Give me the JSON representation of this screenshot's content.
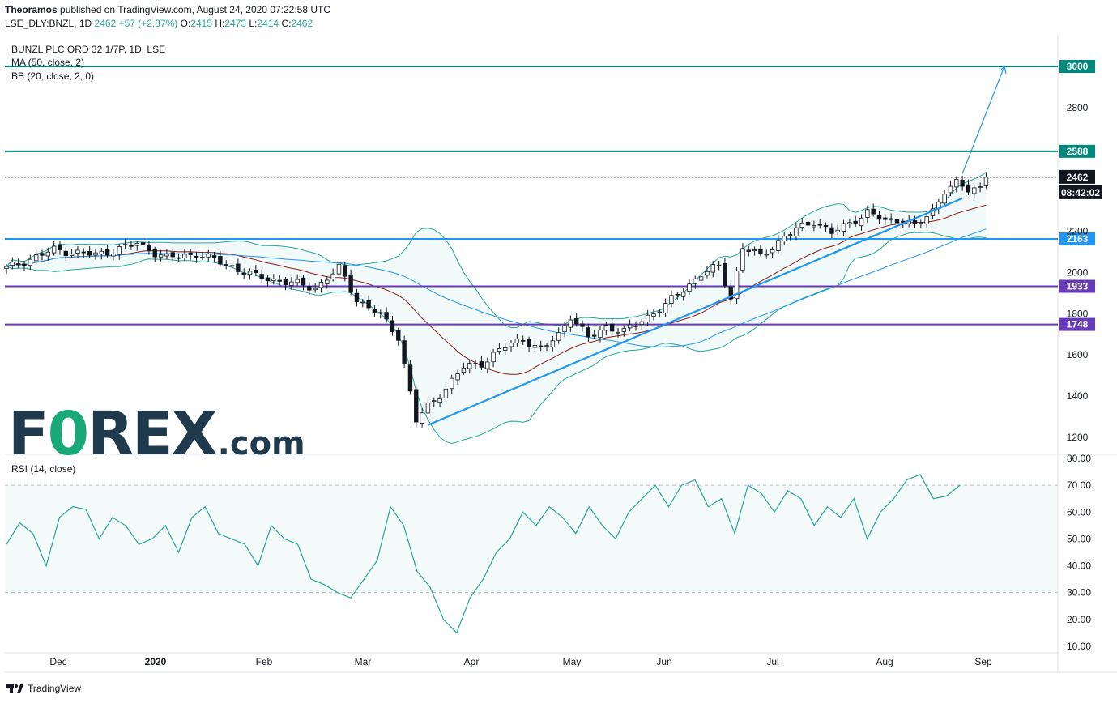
{
  "header": {
    "publisher": "Theoramos",
    "published_text": " published on TradingView.com, August 24, 2020 07:22:58 UTC",
    "symbol": "LSE_DLY:BNZL, 1D",
    "last": "2462",
    "change": "+57 (+2.37%)",
    "o_label": "O:",
    "o_value": "2415",
    "h_label": "H:",
    "h_value": "2473",
    "l_label": "L:",
    "l_value": "2414",
    "c_label": "C:",
    "c_value": "2462"
  },
  "legend": {
    "title": "BUNZL PLC ORD 32 1/7P, 1D, LSE",
    "ma": "MA (50, close, 2)",
    "bb": "BB (20, close, 2, 0)",
    "rsi": "RSI (14, close)"
  },
  "logo": {
    "part1": "F",
    "part2": "0",
    "part3": "REX",
    "part4": ".com"
  },
  "footer": {
    "brand": "TradingView"
  },
  "colors": {
    "up": "#ffffff",
    "down": "#131722",
    "teal_level": "#00897b",
    "purple_level": "#673ab7",
    "blue_level": "#2196f3",
    "bb": "#26a69a",
    "ma": "#2196f3",
    "basis": "#8b1a1a",
    "rsi": "#26a69a"
  },
  "chart_data": [
    {
      "type": "candlestick",
      "title": "BUNZL PLC ORD 32 1/7P, 1D, LSE",
      "x_ticks": [
        "Dec",
        "2020",
        "Feb",
        "Mar",
        "Apr",
        "May",
        "Jun",
        "Jul",
        "Aug",
        "Sep"
      ],
      "y_ticks": [
        "1200",
        "1400",
        "1600",
        "1800",
        "2000",
        "2200",
        "2800"
      ],
      "ylim": [
        1130,
        3080
      ],
      "current_price": 2462,
      "countdown": "08:42:02",
      "levels": [
        {
          "value": 3000,
          "label": "3000",
          "color": "teal"
        },
        {
          "value": 2588,
          "label": "2588",
          "color": "teal"
        },
        {
          "value": 2163,
          "label": "2163",
          "color": "blue"
        },
        {
          "value": 1933,
          "label": "1933",
          "color": "purple"
        },
        {
          "value": 1748,
          "label": "1748",
          "color": "purple"
        }
      ],
      "close_anchors": [
        [
          0,
          2020
        ],
        [
          8,
          2110
        ],
        [
          15,
          2085
        ],
        [
          22,
          2140
        ],
        [
          27,
          2070
        ],
        [
          32,
          2090
        ],
        [
          37,
          2040
        ],
        [
          42,
          1980
        ],
        [
          47,
          1955
        ],
        [
          52,
          1925
        ],
        [
          56,
          2020
        ],
        [
          59,
          1870
        ],
        [
          63,
          1790
        ],
        [
          66,
          1690
        ],
        [
          69,
          1280
        ],
        [
          71,
          1350
        ],
        [
          74,
          1440
        ],
        [
          77,
          1540
        ],
        [
          80,
          1560
        ],
        [
          84,
          1640
        ],
        [
          87,
          1680
        ],
        [
          90,
          1620
        ],
        [
          93,
          1700
        ],
        [
          95,
          1790
        ],
        [
          98,
          1680
        ],
        [
          101,
          1740
        ],
        [
          104,
          1710
        ],
        [
          107,
          1770
        ],
        [
          111,
          1840
        ],
        [
          114,
          1920
        ],
        [
          117,
          1990
        ],
        [
          120,
          2030
        ],
        [
          122,
          1880
        ],
        [
          124,
          2120
        ],
        [
          127,
          2080
        ],
        [
          130,
          2150
        ],
        [
          133,
          2210
        ],
        [
          136,
          2250
        ],
        [
          139,
          2190
        ],
        [
          142,
          2240
        ],
        [
          145,
          2290
        ],
        [
          148,
          2250
        ],
        [
          151,
          2260
        ],
        [
          153,
          2220
        ],
        [
          156,
          2300
        ],
        [
          158,
          2400
        ],
        [
          160,
          2430
        ],
        [
          162,
          2400
        ],
        [
          164,
          2415
        ],
        [
          165,
          2462
        ]
      ],
      "trend_line": [
        [
          1260,
          "2020-03-18"
        ],
        [
          2360,
          "2020-08-24"
        ]
      ],
      "target_arrow": [
        [
          2462,
          "2020-08-24"
        ],
        [
          3000,
          "2020-09-06"
        ]
      ]
    },
    {
      "type": "line",
      "title": "RSI (14, close)",
      "y_ticks": [
        "10.00",
        "20.00",
        "30.00",
        "40.00",
        "50.00",
        "60.00",
        "70.00",
        "80.00"
      ],
      "ylim": [
        7,
        82
      ],
      "bands": [
        30,
        70
      ],
      "values": [
        48,
        56,
        52,
        40,
        58,
        62,
        61,
        50,
        58,
        55,
        48,
        50,
        55,
        45,
        58,
        62,
        52,
        50,
        48,
        40,
        55,
        50,
        48,
        35,
        33,
        30,
        28,
        35,
        42,
        62,
        55,
        38,
        32,
        20,
        15,
        28,
        35,
        45,
        50,
        60,
        55,
        62,
        58,
        52,
        62,
        55,
        50,
        60,
        65,
        70,
        62,
        70,
        72,
        62,
        65,
        52,
        70,
        67,
        60,
        68,
        65,
        55,
        62,
        58,
        65,
        50,
        60,
        65,
        72,
        74,
        65,
        66,
        70
      ]
    }
  ]
}
